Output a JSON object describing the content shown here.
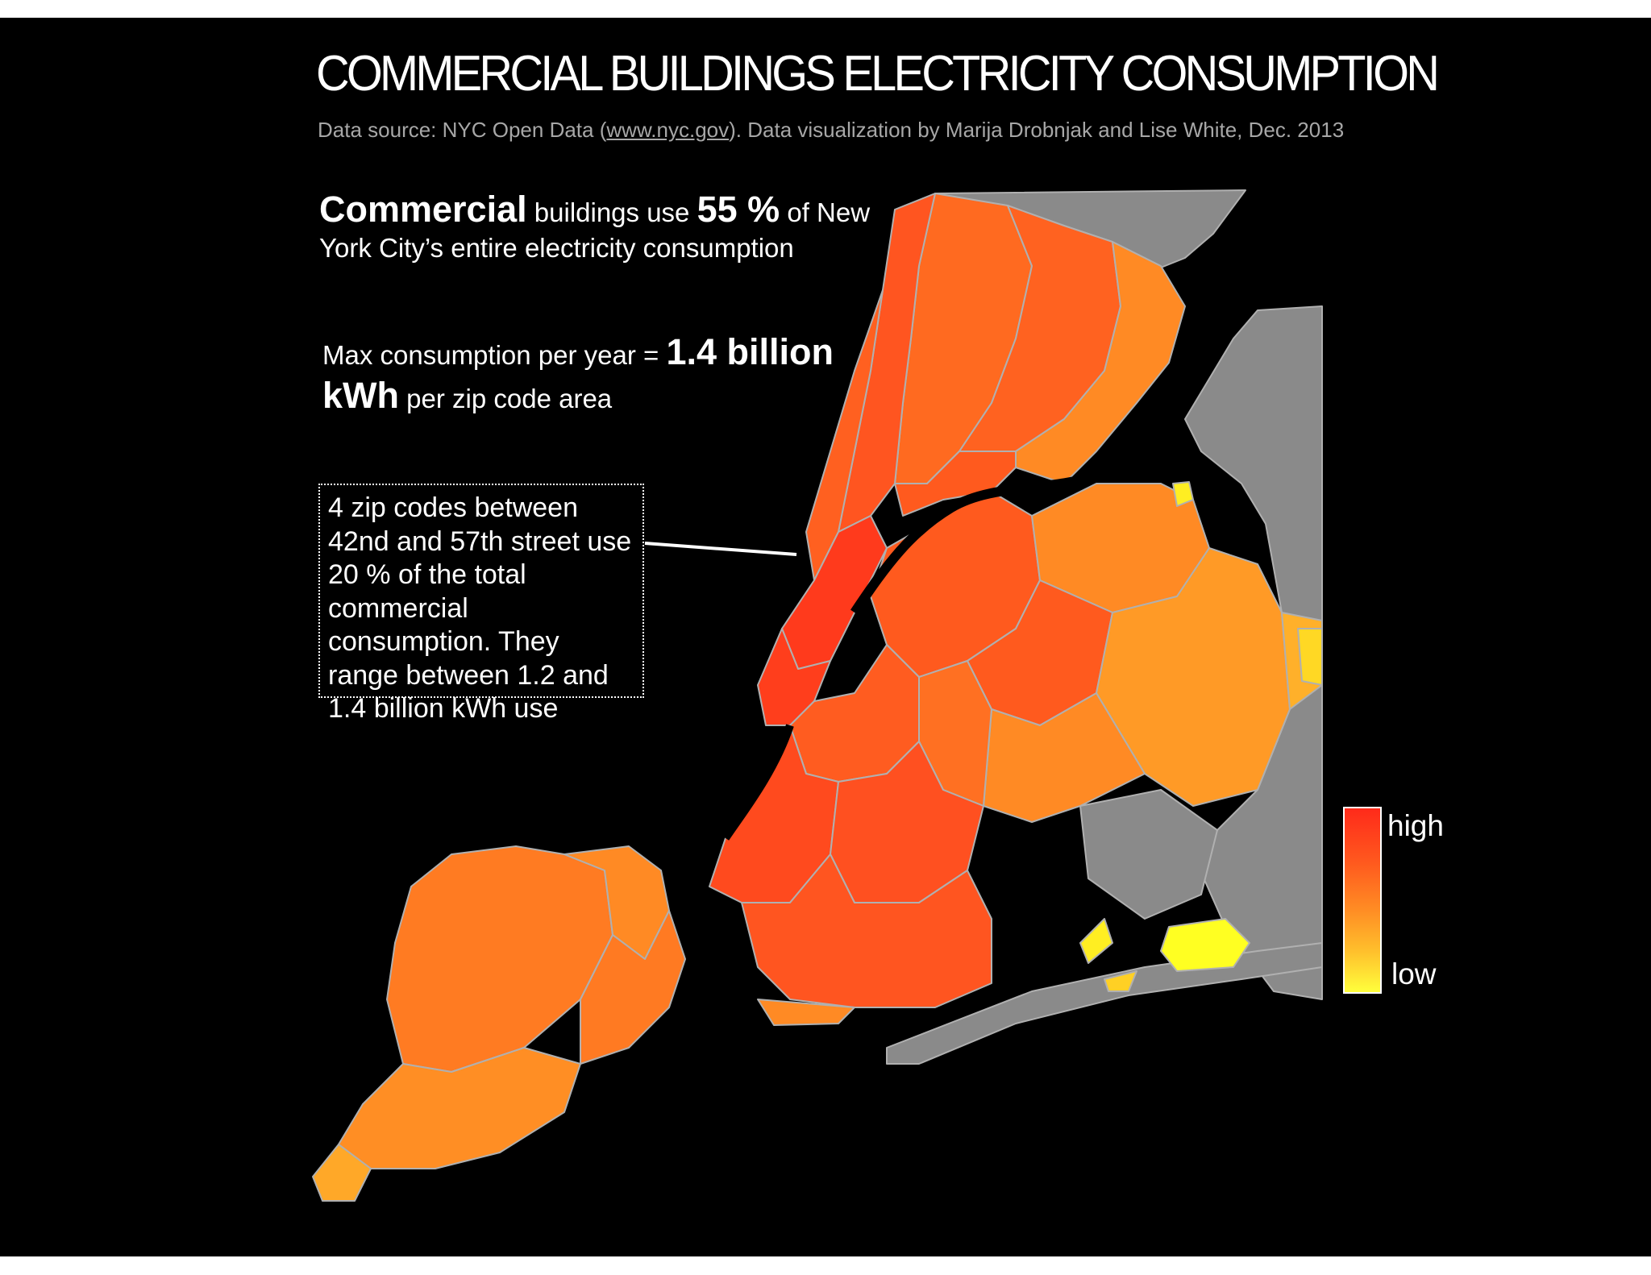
{
  "title": "COMMERCIAL BUILDINGS ELECTRICITY CONSUMPTION",
  "subtitle": {
    "prefix": "Data source:  NYC Open Data (",
    "link": "www.nyc.gov",
    "suffix": ").  Data visualization by Marija Drobnjak and Lise White,  Dec. 2013"
  },
  "stat_share": {
    "bold_word": "Commercial",
    "text_a": " buildings use ",
    "bold_value": "55 %",
    "text_b": " of New York City’s entire electricity consumption"
  },
  "stat_max": {
    "text_a": "Max consumption per year = ",
    "bold_value": "1.4 billion",
    "bold_unit": "kWh",
    "text_b": " per zip code area"
  },
  "callout": {
    "text": "4 zip codes between 42nd and 57th street use 20 % of the total commercial consumption. They range between 1.2 and 1.4 billion kWh use"
  },
  "legend": {
    "high_label": "high",
    "low_label": "low",
    "colors": [
      "#ff2a1a",
      "#ff5a1e",
      "#ff8c24",
      "#ffc02c",
      "#ffff3c"
    ]
  },
  "map_colors": {
    "background": "#000000",
    "outside_city": "#8a8a8a",
    "borders": "#b8b8b8",
    "high": "#ff3a1c",
    "mid_high": "#ff5e20",
    "mid": "#ff7a22",
    "mid_low": "#ff9a26",
    "low": "#ffff22"
  }
}
